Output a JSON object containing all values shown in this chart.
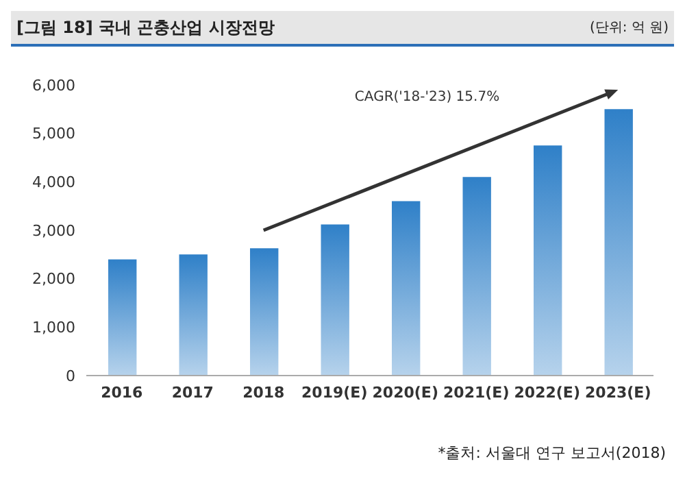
{
  "chart_data": {
    "type": "bar",
    "title": "[그림 18] 국내 곤충산업 시장전망",
    "subtitle": "(단위: 억 원)",
    "categories": [
      "2016",
      "2017",
      "2018",
      "2019(E)",
      "2020(E)",
      "2021(E)",
      "2022(E)",
      "2023(E)"
    ],
    "values": [
      2400,
      2500,
      2630,
      3120,
      3600,
      4100,
      4750,
      5500
    ],
    "color": "#2f80c8",
    "ylim": [
      0,
      6000
    ],
    "yticks": [
      {
        "value": 0,
        "label": "0"
      },
      {
        "value": 1000,
        "label": "1,000"
      },
      {
        "value": 2000,
        "label": "2,000"
      },
      {
        "value": 3000,
        "label": "3,000"
      },
      {
        "value": 4000,
        "label": "4,000"
      },
      {
        "value": 5000,
        "label": "5,000"
      },
      {
        "value": 6000,
        "label": "6,000"
      }
    ],
    "grid": false,
    "legend": false,
    "annotations": [
      "CAGR('18-'23) 15.7%",
      "*출처: 서울대 연구 보고서(2018)"
    ]
  }
}
